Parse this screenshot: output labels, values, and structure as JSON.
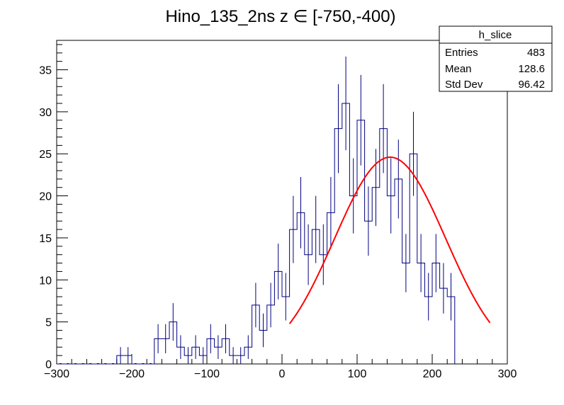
{
  "chart_data": {
    "type": "histogram",
    "title": "Hino_135_2ns z  ∈ [-750,-400)",
    "xlabel": "",
    "ylabel": "",
    "xlim": [
      -300,
      300
    ],
    "ylim": [
      0,
      38.5
    ],
    "x_ticks": [
      -300,
      -200,
      -100,
      0,
      100,
      200,
      300
    ],
    "x_tick_labels": [
      "−300",
      "−200",
      "−100",
      "0",
      "100",
      "200",
      "300"
    ],
    "y_ticks": [
      0,
      5,
      10,
      15,
      20,
      25,
      30,
      35
    ],
    "y_tick_labels": [
      "0",
      "5",
      "10",
      "15",
      "20",
      "25",
      "30",
      "35"
    ],
    "bin_low": -300,
    "bin_width": 10,
    "bin_counts": [
      0,
      0,
      0,
      0,
      0,
      0,
      0,
      0,
      1,
      1,
      0,
      0,
      0,
      3,
      3,
      5,
      2,
      1,
      2,
      1,
      3,
      2,
      3,
      1,
      1,
      2,
      7,
      4,
      7,
      11,
      8,
      16,
      18,
      13,
      16,
      13,
      18,
      28,
      31,
      20,
      29,
      17,
      21,
      28,
      20,
      22,
      12,
      25,
      12,
      8,
      12,
      9,
      8
    ],
    "histogram_color": "#000080",
    "fit": {
      "type": "gaus",
      "amplitude": 24.6,
      "mean": 144,
      "sigma": 74,
      "x_range": [
        10,
        277
      ],
      "color": "#ff0000"
    },
    "stats": {
      "name": "h_slice",
      "rows": [
        {
          "label": "Entries",
          "value": "483"
        },
        {
          "label": "Mean",
          "value": "128.6"
        },
        {
          "label": "Std Dev",
          "value": "96.42"
        }
      ]
    }
  }
}
